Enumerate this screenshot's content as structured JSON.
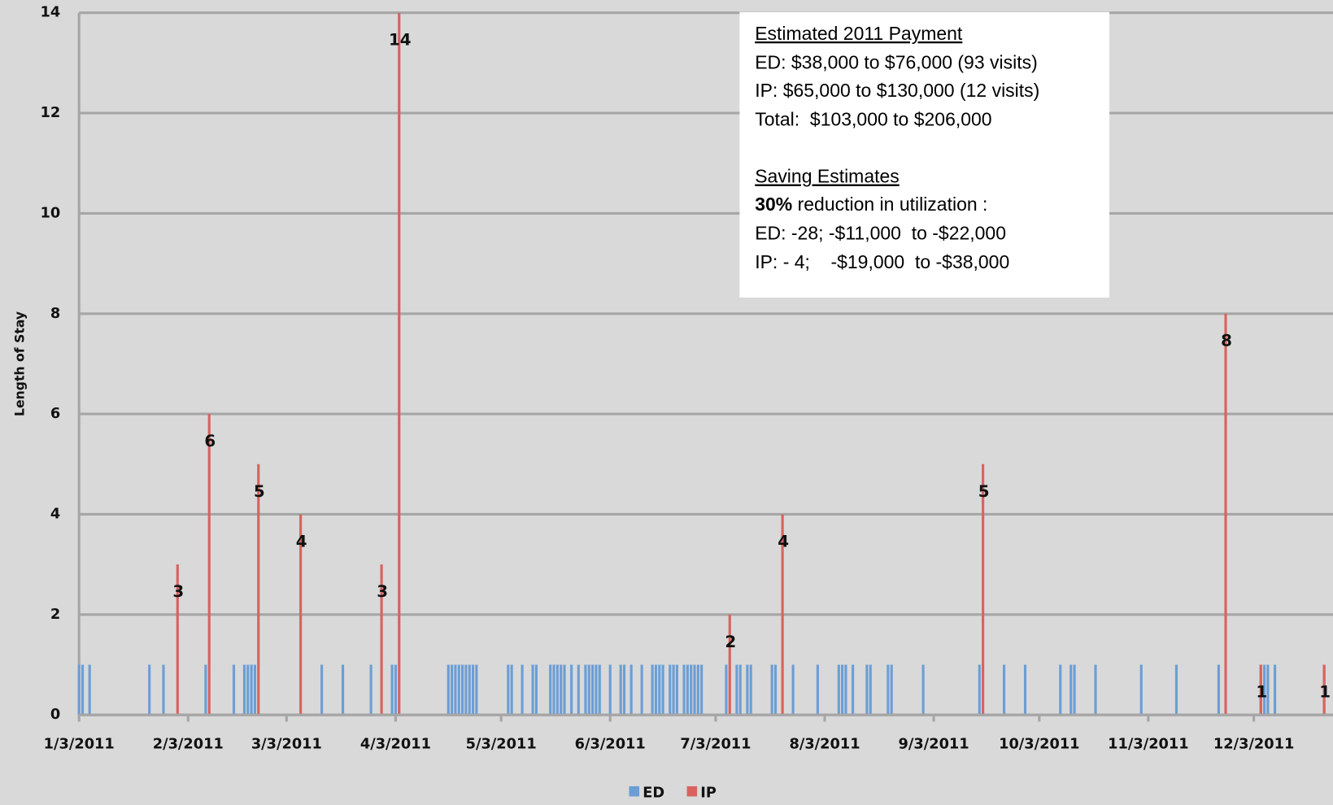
{
  "chart_data": {
    "type": "bar",
    "y_label": "Length of Stay",
    "xlim": [
      "1/3/2011",
      "12/26/2011"
    ],
    "xticks": [
      "1/3/2011",
      "2/3/2011",
      "3/3/2011",
      "4/3/2011",
      "5/3/2011",
      "6/3/2011",
      "7/3/2011",
      "8/3/2011",
      "9/3/2011",
      "10/3/2011",
      "11/3/2011",
      "12/3/2011"
    ],
    "ylim": [
      0,
      14
    ],
    "yticks": [
      0,
      2,
      4,
      6,
      8,
      10,
      12,
      14
    ],
    "grid": true,
    "legend": "bottom",
    "series": [
      {
        "name": "ED",
        "color": "#6b9ed6",
        "x": [
          "1/3/2011",
          "1/4/2011",
          "1/6/2011",
          "1/23/2011",
          "1/27/2011",
          "2/8/2011",
          "2/16/2011",
          "2/19/2011",
          "2/20/2011",
          "2/21/2011",
          "2/22/2011",
          "3/13/2011",
          "3/19/2011",
          "3/27/2011",
          "4/2/2011",
          "4/3/2011",
          "4/18/2011",
          "4/19/2011",
          "4/20/2011",
          "4/21/2011",
          "4/22/2011",
          "4/23/2011",
          "4/24/2011",
          "4/25/2011",
          "4/26/2011",
          "5/5/2011",
          "5/6/2011",
          "5/9/2011",
          "5/12/2011",
          "5/13/2011",
          "5/17/2011",
          "5/18/2011",
          "5/19/2011",
          "5/20/2011",
          "5/21/2011",
          "5/23/2011",
          "5/25/2011",
          "5/27/2011",
          "5/28/2011",
          "5/29/2011",
          "5/30/2011",
          "5/31/2011",
          "6/3/2011",
          "6/6/2011",
          "6/7/2011",
          "6/9/2011",
          "6/12/2011",
          "6/15/2011",
          "6/16/2011",
          "6/17/2011",
          "6/18/2011",
          "6/20/2011",
          "6/21/2011",
          "6/22/2011",
          "6/24/2011",
          "6/25/2011",
          "6/26/2011",
          "6/27/2011",
          "6/28/2011",
          "6/29/2011",
          "7/6/2011",
          "7/9/2011",
          "7/10/2011",
          "7/12/2011",
          "7/13/2011",
          "7/19/2011",
          "7/20/2011",
          "7/25/2011",
          "8/1/2011",
          "8/7/2011",
          "8/8/2011",
          "8/9/2011",
          "8/11/2011",
          "8/15/2011",
          "8/16/2011",
          "8/21/2011",
          "8/22/2011",
          "8/31/2011",
          "9/16/2011",
          "9/23/2011",
          "9/29/2011",
          "10/9/2011",
          "10/12/2011",
          "10/13/2011",
          "10/19/2011",
          "11/1/2011",
          "11/11/2011",
          "11/23/2011",
          "12/5/2011",
          "12/6/2011",
          "12/7/2011",
          "12/9/2011",
          "12/23/2011"
        ],
        "values": [
          1,
          1,
          1,
          1,
          1,
          1,
          1,
          1,
          1,
          1,
          1,
          1,
          1,
          1,
          1,
          1,
          1,
          1,
          1,
          1,
          1,
          1,
          1,
          1,
          1,
          1,
          1,
          1,
          1,
          1,
          1,
          1,
          1,
          1,
          1,
          1,
          1,
          1,
          1,
          1,
          1,
          1,
          1,
          1,
          1,
          1,
          1,
          1,
          1,
          1,
          1,
          1,
          1,
          1,
          1,
          1,
          1,
          1,
          1,
          1,
          1,
          1,
          1,
          1,
          1,
          1,
          1,
          1,
          1,
          1,
          1,
          1,
          1,
          1,
          1,
          1,
          1,
          1,
          1,
          1,
          1,
          1,
          1,
          1,
          1,
          1,
          1,
          1,
          1,
          1,
          1,
          1,
          1
        ]
      },
      {
        "name": "IP",
        "color": "#d9625e",
        "x": [
          "1/31/2011",
          "2/9/2011",
          "2/23/2011",
          "3/7/2011",
          "3/30/2011",
          "4/4/2011",
          "7/7/2011",
          "7/22/2011",
          "9/17/2011",
          "11/25/2011",
          "12/5/2011",
          "12/23/2011"
        ],
        "values": [
          3,
          6,
          5,
          4,
          3,
          14,
          2,
          4,
          5,
          8,
          1,
          1
        ]
      }
    ],
    "annotation": {
      "payment_title": "Estimated 2011 Payment",
      "payment_lines": [
        "ED: $38,000 to $76,000 (93 visits)",
        "IP: $65,000 to $130,000 (12 visits)",
        "Total:  $103,000 to $206,000"
      ],
      "saving_title": "Saving Estimates",
      "saving_emphasis": "30%",
      "saving_text": " reduction in utilization :",
      "saving_lines": [
        "ED: -28; -$11,000  to -$22,000",
        "IP: - 4;    -$19,000  to -$38,000"
      ]
    }
  }
}
